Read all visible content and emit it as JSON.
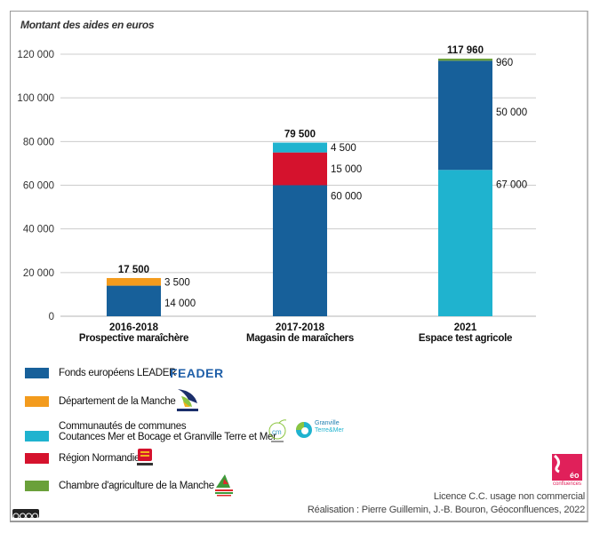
{
  "chart_data": {
    "type": "bar",
    "stacked": true,
    "title": "",
    "ylabel": "Montant des aides en euros",
    "xlabel": "",
    "ylim": [
      0,
      120000
    ],
    "yticks": [
      0,
      20000,
      40000,
      60000,
      80000,
      100000,
      120000
    ],
    "ytick_labels": [
      "0",
      "20 000",
      "40 000",
      "60 000",
      "80 000",
      "100 000",
      "120 000"
    ],
    "grid": true,
    "legend_position": "bottom-left",
    "categories": [
      {
        "period": "2016-2018",
        "name": "Prospective maraîchère"
      },
      {
        "period": "2017-2018",
        "name": "Magasin de maraîchers"
      },
      {
        "period": "2021",
        "name": "Espace test agricole"
      }
    ],
    "series": [
      {
        "name": "Fonds européens LEADER",
        "color": "#17609a",
        "values": [
          14000,
          60000,
          0
        ]
      },
      {
        "name": "Communautés de communes Coutances Mer et Bocage et Granville Terre et Mer",
        "color": "#1fb3cf",
        "values": [
          0,
          0,
          67000
        ]
      },
      {
        "name": "Département de la Manche",
        "color": "#f39b1d",
        "values": [
          3500,
          0,
          0
        ]
      },
      {
        "name": "Région Normandie",
        "color": "#d5122d",
        "values": [
          0,
          15000,
          0
        ]
      },
      {
        "name": "Communautés de communes (top)",
        "color": "#1fb3cf",
        "values": [
          0,
          4500,
          0
        ]
      },
      {
        "name": "Fonds européens LEADER (2021)",
        "color": "#17609a",
        "values": [
          0,
          0,
          50000
        ]
      },
      {
        "name": "Chambre d'agriculture de la Manche",
        "color": "#6aa03a",
        "values": [
          0,
          0,
          960
        ]
      }
    ],
    "stacks": [
      {
        "segments": [
          {
            "series": "Fonds européens LEADER",
            "value": 14000,
            "label": "14 000",
            "color": "#17609a"
          },
          {
            "series": "Département de la Manche",
            "value": 3500,
            "label": "3 500",
            "color": "#f39b1d"
          }
        ],
        "total": 17500,
        "total_label": "17 500"
      },
      {
        "segments": [
          {
            "series": "Fonds européens LEADER",
            "value": 60000,
            "label": "60 000",
            "color": "#17609a"
          },
          {
            "series": "Région Normandie",
            "value": 15000,
            "label": "15 000",
            "color": "#d5122d"
          },
          {
            "series": "Communautés de communes",
            "value": 4500,
            "label": "4 500",
            "color": "#1fb3cf"
          }
        ],
        "total": 79500,
        "total_label": "79 500"
      },
      {
        "segments": [
          {
            "series": "Communautés de communes",
            "value": 67000,
            "label": "67 000",
            "color": "#1fb3cf"
          },
          {
            "series": "Fonds européens LEADER",
            "value": 50000,
            "label": "50 000",
            "color": "#17609a"
          },
          {
            "series": "Chambre d'agriculture de la Manche",
            "value": 960,
            "label": "960",
            "color": "#6aa03a"
          }
        ],
        "total": 117960,
        "total_label": "117 960"
      }
    ]
  },
  "legend": {
    "items": [
      {
        "label": "Fonds européens LEADER",
        "label2": "",
        "color": "#17609a",
        "logo": "FEADER"
      },
      {
        "label": "Département de la Manche",
        "label2": "",
        "color": "#f39b1d",
        "logo": "LA MANCHE"
      },
      {
        "label": "Communautés de communes",
        "label2": "Coutances Mer et Bocage et Granville Terre et Mer",
        "color": "#1fb3cf",
        "logo": "Granville Terre&Mer"
      },
      {
        "label": "Région Normandie",
        "label2": "",
        "color": "#d5122d",
        "logo": "Normandie-flag-icon"
      },
      {
        "label": "Chambre d'agriculture de la Manche",
        "label2": "",
        "color": "#6aa03a",
        "logo": "chambre-agriculture-icon"
      }
    ]
  },
  "logos": {
    "feader": "FEADER",
    "granville_1": "Granville",
    "granville_2": "Terre&Mer",
    "geo_text": "éo",
    "geo_sub": "confluences"
  },
  "credits": {
    "licence": "Licence C.C. usage non commercial",
    "authors": "Réalisation : Pierre Guillemin, J.-B. Bouron, Géoconfluences, 2022"
  }
}
